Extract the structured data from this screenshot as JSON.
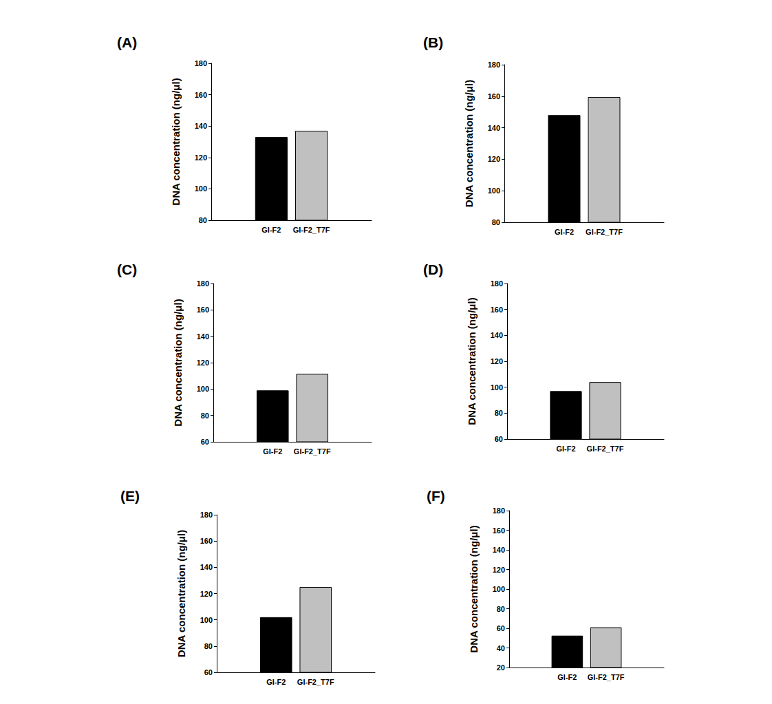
{
  "chart_data": [
    {
      "type": "bar",
      "title": "(A)",
      "y_label": "DNA concentration (ng/μl)",
      "categories": [
        "GI-F2",
        "GI-F2_T7F"
      ],
      "values": [
        133,
        137
      ],
      "colors": [
        "#000000",
        "#c0c0c0"
      ],
      "ylim": [
        80,
        180
      ],
      "yticks": [
        80,
        100,
        120,
        140,
        160,
        180
      ],
      "grid": false
    },
    {
      "type": "bar",
      "title": "(B)",
      "y_label": "DNA concentration (ng/μl)",
      "categories": [
        "GI-F2",
        "GI-F2_T7F"
      ],
      "values": [
        148,
        159.5
      ],
      "colors": [
        "#000000",
        "#c0c0c0"
      ],
      "ylim": [
        80,
        180
      ],
      "yticks": [
        80,
        100,
        120,
        140,
        160,
        180
      ],
      "grid": false
    },
    {
      "type": "bar",
      "title": "(C)",
      "y_label": "DNA concentration (ng/μl)",
      "categories": [
        "GI-F2",
        "GI-F2_T7F"
      ],
      "values": [
        99,
        111.5
      ],
      "colors": [
        "#000000",
        "#c0c0c0"
      ],
      "ylim": [
        60,
        180
      ],
      "yticks": [
        60,
        80,
        100,
        120,
        140,
        160,
        180
      ],
      "grid": false
    },
    {
      "type": "bar",
      "title": "(D)",
      "y_label": "DNA concentration (ng/μl)",
      "categories": [
        "GI-F2",
        "GI-F2_T7F"
      ],
      "values": [
        97,
        104
      ],
      "colors": [
        "#000000",
        "#c0c0c0"
      ],
      "ylim": [
        60,
        180
      ],
      "yticks": [
        60,
        80,
        100,
        120,
        140,
        160,
        180
      ],
      "grid": false
    },
    {
      "type": "bar",
      "title": "(E)",
      "y_label": "DNA concentration (ng/μl)",
      "categories": [
        "GI-F2",
        "GI-F2_T7F"
      ],
      "values": [
        102,
        125
      ],
      "colors": [
        "#000000",
        "#c0c0c0"
      ],
      "ylim": [
        60,
        180
      ],
      "yticks": [
        60,
        80,
        100,
        120,
        140,
        160,
        180
      ],
      "grid": false
    },
    {
      "type": "bar",
      "title": "(F)",
      "y_label": "DNA concentration (ng/μl)",
      "categories": [
        "GI-F2",
        "GI-F2_T7F"
      ],
      "values": [
        52.5,
        61
      ],
      "colors": [
        "#000000",
        "#c0c0c0"
      ],
      "ylim": [
        20,
        180
      ],
      "yticks": [
        20,
        40,
        60,
        80,
        100,
        120,
        140,
        160,
        180
      ],
      "grid": false
    }
  ]
}
